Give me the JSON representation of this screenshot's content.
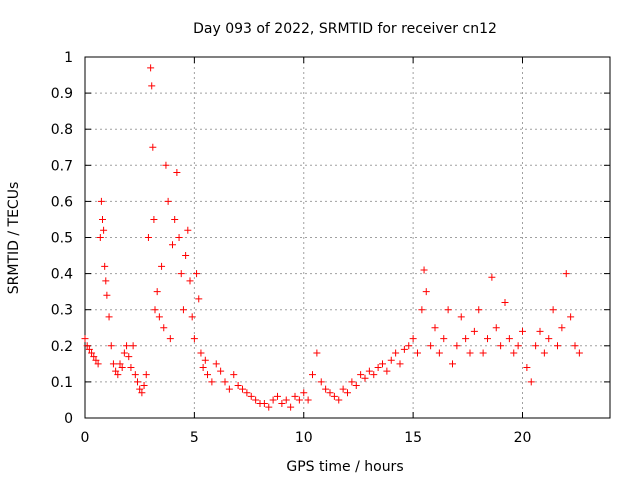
{
  "chart_data": {
    "type": "scatter",
    "title": "Day 093 of 2022, SRMTID for receiver cn12",
    "xlabel": "GPS time / hours",
    "ylabel": "SRMTID / TECUs",
    "xlim": [
      0,
      24.0
    ],
    "ylim": [
      0,
      1
    ],
    "x_ticks": [
      0,
      5,
      10,
      15,
      20
    ],
    "x_tick_labels": [
      "0",
      "5",
      "10",
      "15",
      "20"
    ],
    "y_ticks": [
      0,
      0.1,
      0.2,
      0.3,
      0.4,
      0.5,
      0.6,
      0.7,
      0.8,
      0.9,
      1
    ],
    "y_tick_labels": [
      "0",
      "0.1",
      "0.2",
      "0.3",
      "0.4",
      "0.5",
      "0.6",
      "0.7",
      "0.8",
      "0.9",
      "1"
    ],
    "grid": true,
    "marker": "+",
    "color": "#ff0000",
    "series": [
      {
        "name": "SRMTID",
        "x": [
          0.0,
          0.1,
          0.2,
          0.3,
          0.4,
          0.5,
          0.6,
          0.7,
          0.75,
          0.8,
          0.85,
          0.9,
          0.95,
          1.0,
          1.1,
          1.2,
          1.3,
          1.4,
          1.5,
          1.6,
          1.7,
          1.8,
          1.9,
          2.0,
          2.1,
          2.2,
          2.3,
          2.4,
          2.5,
          2.6,
          2.7,
          2.8,
          2.9,
          3.0,
          3.05,
          3.1,
          3.15,
          3.2,
          3.3,
          3.4,
          3.5,
          3.6,
          3.7,
          3.8,
          3.9,
          4.0,
          4.1,
          4.2,
          4.3,
          4.4,
          4.5,
          4.6,
          4.7,
          4.8,
          4.9,
          5.0,
          5.1,
          5.2,
          5.3,
          5.4,
          5.5,
          5.6,
          5.8,
          6.0,
          6.2,
          6.4,
          6.6,
          6.8,
          7.0,
          7.2,
          7.4,
          7.6,
          7.8,
          8.0,
          8.2,
          8.4,
          8.6,
          8.8,
          9.0,
          9.2,
          9.4,
          9.6,
          9.8,
          10.0,
          10.2,
          10.4,
          10.6,
          10.8,
          11.0,
          11.2,
          11.4,
          11.6,
          11.8,
          12.0,
          12.2,
          12.4,
          12.6,
          12.8,
          13.0,
          13.2,
          13.4,
          13.6,
          13.8,
          14.0,
          14.2,
          14.4,
          14.6,
          14.8,
          15.0,
          15.2,
          15.4,
          15.5,
          15.6,
          15.8,
          16.0,
          16.2,
          16.4,
          16.6,
          16.8,
          17.0,
          17.2,
          17.4,
          17.6,
          17.8,
          18.0,
          18.2,
          18.4,
          18.6,
          18.8,
          19.0,
          19.2,
          19.4,
          19.6,
          19.8,
          20.0,
          20.2,
          20.4,
          20.6,
          20.8,
          21.0,
          21.2,
          21.4,
          21.6,
          21.8,
          22.0,
          22.2,
          22.4,
          22.6
        ],
        "y": [
          0.22,
          0.2,
          0.19,
          0.18,
          0.17,
          0.16,
          0.15,
          0.5,
          0.6,
          0.55,
          0.52,
          0.42,
          0.38,
          0.34,
          0.28,
          0.2,
          0.15,
          0.13,
          0.12,
          0.15,
          0.14,
          0.18,
          0.2,
          0.17,
          0.14,
          0.2,
          0.12,
          0.1,
          0.08,
          0.07,
          0.09,
          0.12,
          0.5,
          0.97,
          0.92,
          0.75,
          0.55,
          0.3,
          0.35,
          0.28,
          0.42,
          0.25,
          0.7,
          0.6,
          0.22,
          0.48,
          0.55,
          0.68,
          0.5,
          0.4,
          0.3,
          0.45,
          0.52,
          0.38,
          0.28,
          0.22,
          0.4,
          0.33,
          0.18,
          0.14,
          0.16,
          0.12,
          0.1,
          0.15,
          0.13,
          0.1,
          0.08,
          0.12,
          0.09,
          0.08,
          0.07,
          0.06,
          0.05,
          0.04,
          0.04,
          0.03,
          0.05,
          0.06,
          0.04,
          0.05,
          0.03,
          0.06,
          0.05,
          0.07,
          0.05,
          0.12,
          0.18,
          0.1,
          0.08,
          0.07,
          0.06,
          0.05,
          0.08,
          0.07,
          0.1,
          0.09,
          0.12,
          0.11,
          0.13,
          0.12,
          0.14,
          0.15,
          0.13,
          0.16,
          0.18,
          0.15,
          0.19,
          0.2,
          0.22,
          0.18,
          0.3,
          0.41,
          0.35,
          0.2,
          0.25,
          0.18,
          0.22,
          0.3,
          0.15,
          0.2,
          0.28,
          0.22,
          0.18,
          0.24,
          0.3,
          0.18,
          0.22,
          0.39,
          0.25,
          0.2,
          0.32,
          0.22,
          0.18,
          0.2,
          0.24,
          0.14,
          0.1,
          0.2,
          0.24,
          0.18,
          0.22,
          0.3,
          0.2,
          0.25,
          0.4,
          0.28,
          0.2,
          0.18
        ]
      }
    ]
  }
}
